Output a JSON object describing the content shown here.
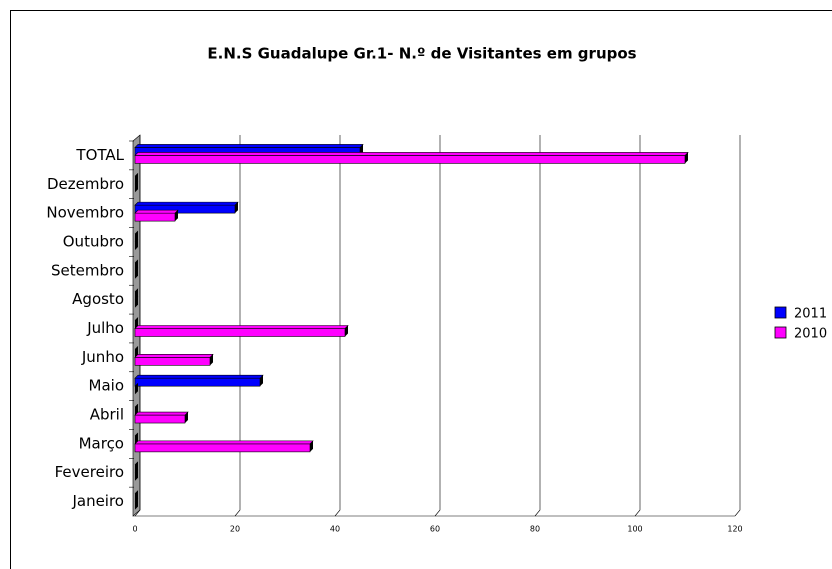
{
  "chart_data": {
    "type": "bar",
    "orientation": "horizontal",
    "title": "E.N.S Guadalupe Gr.1- N.º de Visitantes em grupos",
    "categories": [
      "Janeiro",
      "Fevereiro",
      "Março",
      "Abril",
      "Maio",
      "Junho",
      "Julho",
      "Agosto",
      "Setembro",
      "Outubro",
      "Novembro",
      "Dezembro",
      "TOTAL"
    ],
    "series": [
      {
        "name": "2011",
        "color": "#0000ff",
        "values": [
          0,
          0,
          0,
          0,
          25,
          0,
          0,
          0,
          0,
          0,
          20,
          0,
          45
        ]
      },
      {
        "name": "2010",
        "color": "#ff00ff",
        "values": [
          0,
          0,
          35,
          10,
          0,
          15,
          42,
          0,
          0,
          0,
          8,
          0,
          110
        ]
      }
    ],
    "xlim": [
      0,
      120
    ],
    "xticks": [
      0,
      20,
      40,
      60,
      80,
      100,
      120
    ],
    "grid": true,
    "legend": "right"
  }
}
